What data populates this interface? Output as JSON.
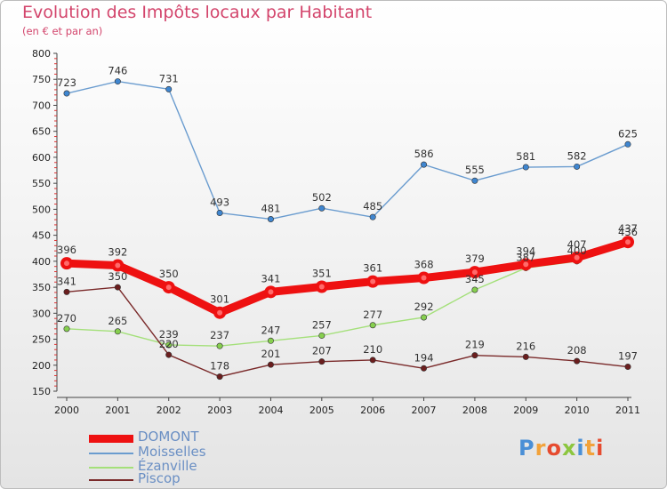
{
  "header": {
    "title": "Evolution des Impôts locaux par Habitant",
    "subtitle": "(en € et par an)"
  },
  "logo": {
    "text": "Proxiti"
  },
  "chart_data": {
    "type": "line",
    "title": "Evolution des Impôts locaux par Habitant",
    "subtitle": "(en € et par an)",
    "xlabel": "",
    "ylabel": "",
    "ylim": [
      150,
      800
    ],
    "yticks": [
      150,
      200,
      250,
      300,
      350,
      400,
      450,
      500,
      550,
      600,
      650,
      700,
      750,
      800
    ],
    "categories": [
      "2000",
      "2001",
      "2002",
      "2003",
      "2004",
      "2005",
      "2006",
      "2007",
      "2008",
      "2009",
      "2010",
      "2011"
    ],
    "grid": false,
    "legend_position": "bottom-left",
    "series": [
      {
        "name": "Moisselles",
        "color": "#6a9ccf",
        "marker": "#3f86d0",
        "emphasis": false,
        "values": [
          723,
          746,
          731,
          493,
          481,
          502,
          485,
          586,
          555,
          581,
          582,
          625
        ],
        "labels": [
          "723",
          "746",
          "731",
          "493",
          "481",
          "502",
          "485",
          "586",
          "555",
          "581",
          "582",
          "625"
        ]
      },
      {
        "name": "Ézanville",
        "color": "#a4e07a",
        "marker": "#86cf4e",
        "emphasis": false,
        "values": [
          270,
          265,
          239,
          237,
          247,
          257,
          277,
          292,
          345,
          387,
          400,
          436
        ],
        "labels": [
          "270",
          "265",
          "239",
          "237",
          "247",
          "257",
          "277",
          "292",
          "345",
          "387",
          "400",
          "436"
        ]
      },
      {
        "name": "Piscop",
        "color": "#7a2a2a",
        "marker": "#6b1e1e",
        "emphasis": false,
        "values": [
          341,
          350,
          220,
          178,
          201,
          207,
          210,
          194,
          219,
          216,
          208,
          197
        ],
        "labels": [
          "341",
          "350",
          "220",
          "178",
          "201",
          "207",
          "210",
          "194",
          "219",
          "216",
          "208",
          "197"
        ]
      },
      {
        "name": "DOMONT",
        "color": "#ee1111",
        "marker": "#ee1111",
        "emphasis": true,
        "values": [
          396,
          392,
          350,
          301,
          341,
          351,
          361,
          368,
          379,
          394,
          407,
          437
        ],
        "labels": [
          "396",
          "392",
          "350",
          "301",
          "341",
          "351",
          "361",
          "368",
          "379",
          "394",
          "407",
          "437"
        ]
      }
    ]
  },
  "legend": {
    "items": [
      {
        "label": "DOMONT",
        "color": "#ee1111"
      },
      {
        "label": "Moisselles",
        "color": "#6a9ccf"
      },
      {
        "label": "Ézanville",
        "color": "#a4e07a"
      },
      {
        "label": "Piscop",
        "color": "#7a2a2a"
      }
    ]
  }
}
